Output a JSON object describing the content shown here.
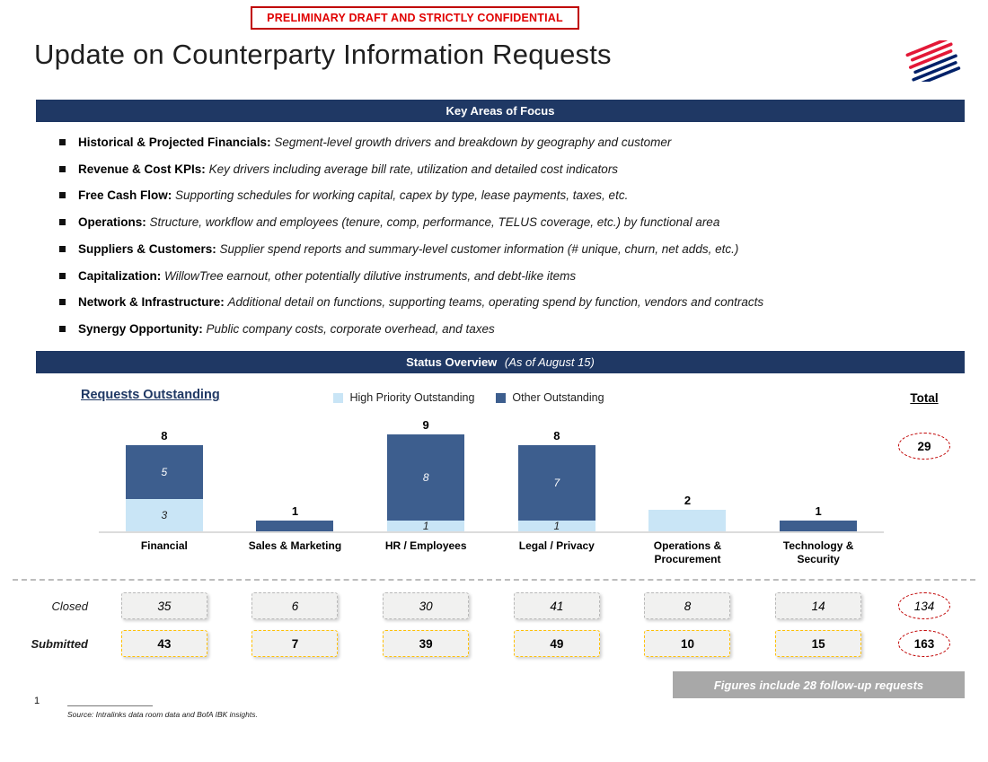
{
  "confidential_banner": "PRELIMINARY DRAFT AND STRICTLY CONFIDENTIAL",
  "title": "Update on Counterparty Information Requests",
  "key_areas": {
    "header": "Key Areas of Focus",
    "bullets": [
      {
        "label": "Historical & Projected Financials:",
        "desc": "Segment-level growth drivers and breakdown by geography and customer"
      },
      {
        "label": "Revenue & Cost KPIs:",
        "desc": "Key drivers including average bill rate, utilization and detailed cost indicators"
      },
      {
        "label": "Free Cash Flow:",
        "desc": "Supporting schedules for working capital, capex by type, lease payments, taxes, etc."
      },
      {
        "label": "Operations:",
        "desc": "Structure, workflow and employees (tenure, comp, performance, TELUS coverage, etc.) by functional area"
      },
      {
        "label": "Suppliers & Customers:",
        "desc": "Supplier spend reports and summary-level customer information (# unique, churn, net adds, etc.)"
      },
      {
        "label": "Capitalization:",
        "desc": "WillowTree earnout, other potentially dilutive instruments, and debt-like items"
      },
      {
        "label": "Network & Infrastructure:",
        "desc": "Additional detail on functions, supporting teams, operating spend by function, vendors and contracts"
      },
      {
        "label": "Synergy Opportunity:",
        "desc": "Public company costs, corporate overhead, and taxes"
      }
    ]
  },
  "status_overview": {
    "header": "Status Overview",
    "as_of": "(As of August 15)"
  },
  "chart_data": {
    "type": "bar",
    "stacked": true,
    "title": "Requests Outstanding",
    "categories": [
      "Financial",
      "Sales & Marketing",
      "HR / Employees",
      "Legal / Privacy",
      "Operations & Procurement",
      "Technology & Security"
    ],
    "series": [
      {
        "name": "High Priority Outstanding",
        "color": "#C9E5F6",
        "values": [
          3,
          0,
          1,
          1,
          2,
          0
        ]
      },
      {
        "name": "Other Outstanding",
        "color": "#3D5E8E",
        "values": [
          5,
          1,
          8,
          7,
          0,
          1
        ]
      }
    ],
    "bar_totals": [
      8,
      1,
      9,
      8,
      2,
      1
    ],
    "ylim": [
      0,
      9
    ],
    "grid": false,
    "legend_position": "top-center",
    "total_column": {
      "label": "Total",
      "outstanding_total": "29"
    }
  },
  "status_table": {
    "rows": [
      {
        "label": "Closed",
        "style": "closed",
        "values": [
          "35",
          "6",
          "30",
          "41",
          "8",
          "14"
        ],
        "total": "134"
      },
      {
        "label": "Submitted",
        "style": "submitted",
        "values": [
          "43",
          "7",
          "39",
          "49",
          "10",
          "15"
        ],
        "total": "163"
      }
    ]
  },
  "callout": "Figures include 28 follow-up requests",
  "footer": {
    "page_number": "1",
    "source": "Source: Intralinks data room data and BofA IBK insights."
  },
  "colors": {
    "navy_header": "#1F3864",
    "confidential_red": "#E00000",
    "oval_red": "#C00000",
    "high_priority_blue": "#C9E5F6",
    "other_outstanding_blue": "#3D5E8E",
    "closed_border_gray": "#B9B9B9",
    "submitted_border_orange": "#FFC000",
    "callout_gray": "#A8A8A8",
    "logo_red": "#E31837",
    "logo_blue": "#012169"
  }
}
